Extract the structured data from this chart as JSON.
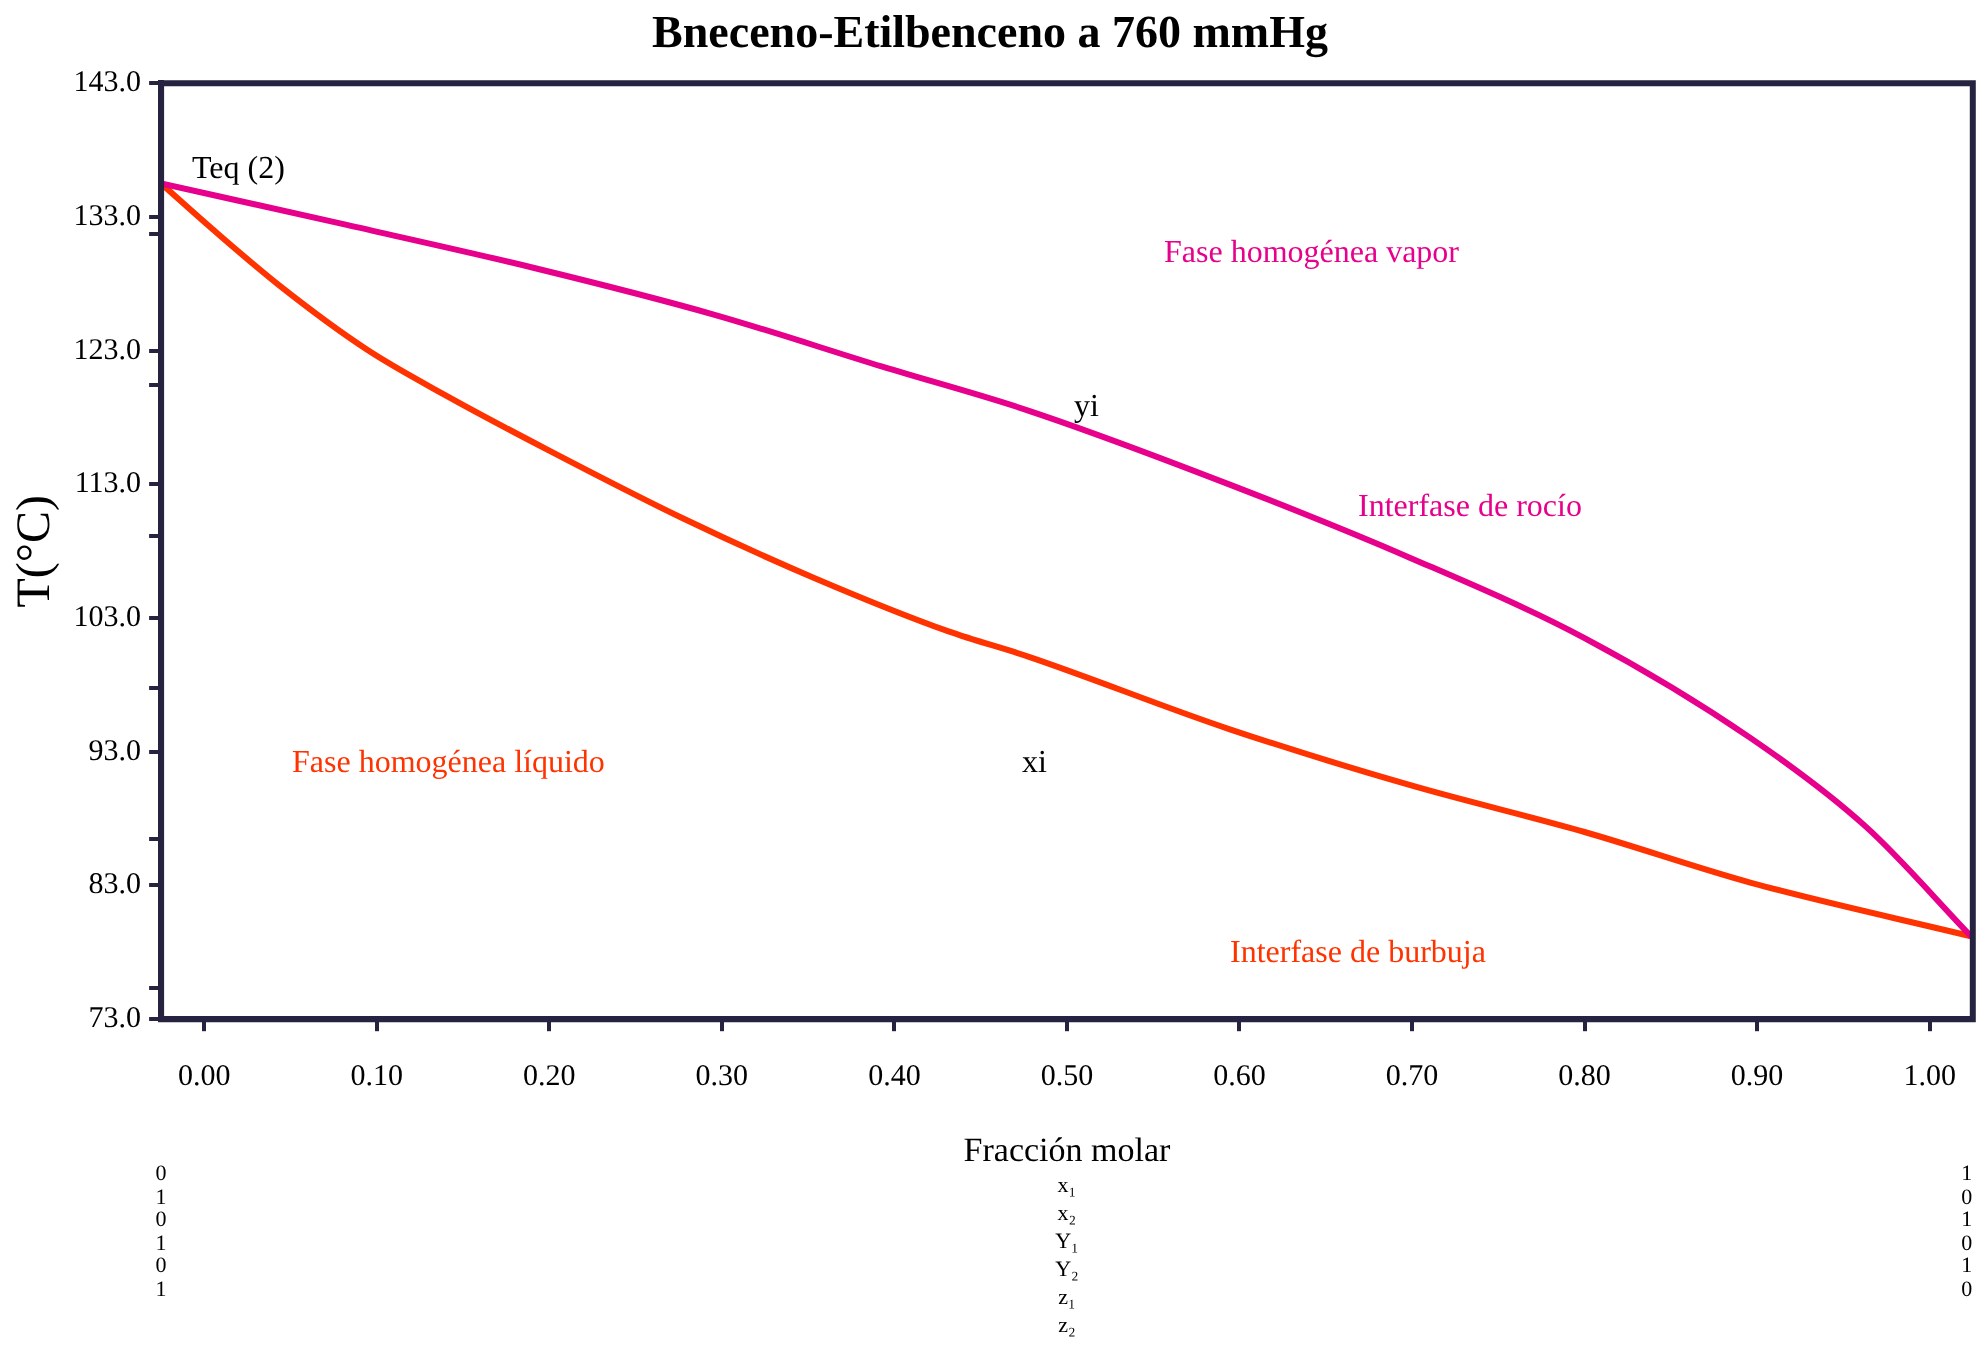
{
  "chart_data": {
    "type": "line",
    "title": "Bneceno-Etilbenceno a 760 mmHg",
    "xlabel": "Fracción molar",
    "ylabel": "T(°C)",
    "xlim": [
      -0.025,
      1.025
    ],
    "xticks": [
      {
        "value": 0,
        "label": "0.00"
      },
      {
        "value": 0.1,
        "label": "0.10"
      },
      {
        "value": 0.2,
        "label": "0.20"
      },
      {
        "value": 0.3,
        "label": "0.30"
      },
      {
        "value": 0.4,
        "label": "0.40"
      },
      {
        "value": 0.5,
        "label": "0.50"
      },
      {
        "value": 0.6,
        "label": "0.60"
      },
      {
        "value": 0.7,
        "label": "0.70"
      },
      {
        "value": 0.8,
        "label": "0.80"
      },
      {
        "value": 0.9,
        "label": "0.90"
      },
      {
        "value": 1,
        "label": "1.00"
      }
    ],
    "ylim": [
      73,
      143
    ],
    "yticks": [
      {
        "value": 73,
        "label": "73.0"
      },
      {
        "value": 83,
        "label": "83.0"
      },
      {
        "value": 93,
        "label": "93.0"
      },
      {
        "value": 103,
        "label": "103.0"
      },
      {
        "value": 113,
        "label": "113.0"
      },
      {
        "value": 123,
        "label": "123.0"
      },
      {
        "value": 133,
        "label": "133.0"
      },
      {
        "value": 143,
        "label": "143.0"
      },
      {
        "value": 131.7,
        "label": null
      },
      {
        "value": 120.4,
        "label": null
      },
      {
        "value": 109.1,
        "label": null
      },
      {
        "value": 97.8,
        "label": null
      },
      {
        "value": 86.5,
        "label": null
      },
      {
        "value": 75.3,
        "label": null
      }
    ],
    "grid": false,
    "legend": false,
    "marker": "none",
    "line_style": "solid",
    "series": [
      {
        "color": "#e6008c",
        "x": [
          -0.025,
          0.0826,
          0.1907,
          0.2953,
          0.393,
          0.478,
          0.594,
          0.699,
          0.8,
          0.8965,
          0.963,
          1.024
        ],
        "values": [
          135.5,
          132.4,
          129.2,
          125.7,
          121.8,
          118.5,
          113.0,
          107.5,
          101.5,
          94.0,
          87.4,
          79.2
        ]
      },
      {
        "color": "#ff3300",
        "x": [
          -0.025,
          0.0047,
          0.0442,
          0.094,
          0.1407,
          0.1988,
          0.2767,
          0.3535,
          0.4314,
          0.478,
          0.594,
          0.699,
          0.8,
          0.8965,
          1.024
        ],
        "values": [
          135.5,
          132.1,
          127.8,
          123.1,
          119.6,
          115.6,
          110.5,
          106.0,
          102.0,
          100.1,
          94.7,
          90.5,
          87.0,
          83.2,
          79.2
        ]
      }
    ],
    "annotations": [
      "Teq (2)",
      "Fase homogénea vapor",
      "yi",
      "Interfase de rocío",
      "Fase homogénea líquido",
      "xi",
      "Interfase de burbuja",
      "0\n1\n0\n1\n0\n1",
      "x₁\nx₂\nY₁\nY₂\nz₁\nz₂",
      "1\n0\n1\n0\n1\n0"
    ]
  }
}
